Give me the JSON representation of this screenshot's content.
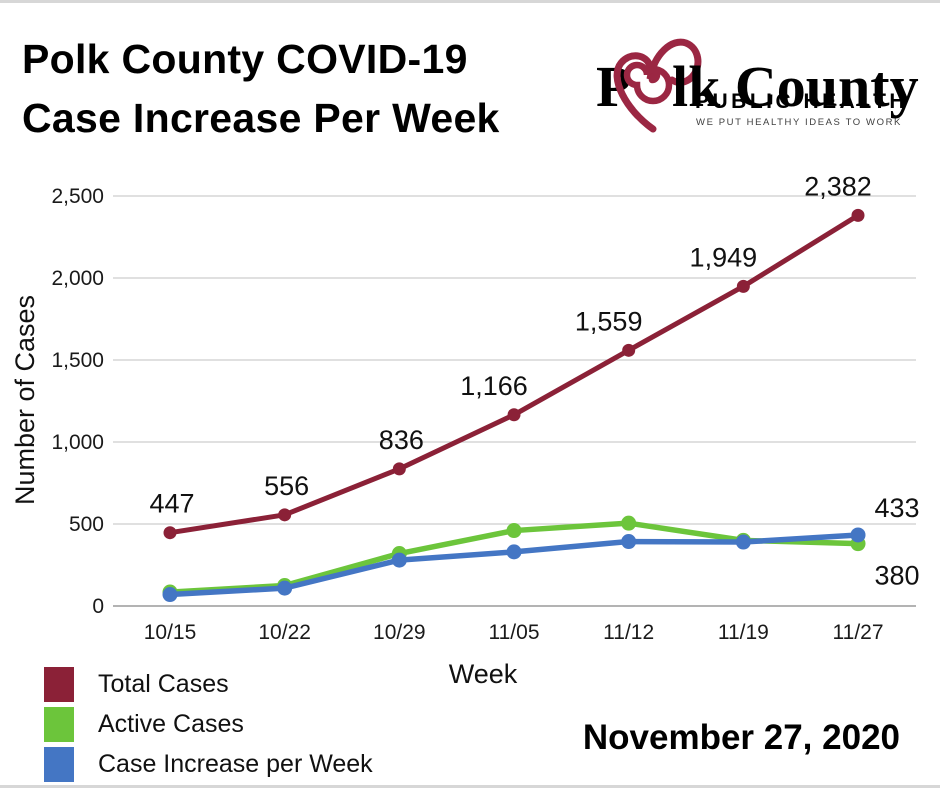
{
  "header": {
    "title_line1": "Polk County COVID-19",
    "title_line2": "Case Increase Per Week"
  },
  "logo": {
    "name_pre": "P",
    "name_post": "lk County",
    "subtitle": "PUBLIC HEALTH",
    "tagline": "WE PUT HEALTHY IDEAS TO WORK",
    "heart_color": "#9b2743"
  },
  "chart_data": {
    "type": "line",
    "title": "Polk County COVID-19 Case Increase Per Week",
    "xlabel": "Week",
    "ylabel": "Number of Cases",
    "categories": [
      "10/15",
      "10/22",
      "10/29",
      "11/05",
      "11/12",
      "11/19",
      "11/27"
    ],
    "y_ticks": [
      {
        "value": 0,
        "label": "0"
      },
      {
        "value": 500,
        "label": "500"
      },
      {
        "value": 1000,
        "label": "1,000"
      },
      {
        "value": 1500,
        "label": "1,500"
      },
      {
        "value": 2000,
        "label": "2,000"
      },
      {
        "value": 2500,
        "label": "2,500"
      }
    ],
    "ylim": [
      0,
      2500
    ],
    "grid": true,
    "legend_position": "bottom-left",
    "series": [
      {
        "name": "Total Cases",
        "color": "#8b2137",
        "values": [
          447,
          556,
          836,
          1166,
          1559,
          1949,
          2382
        ],
        "labels": [
          "447",
          "556",
          "836",
          "1,166",
          "1,559",
          "1,949",
          "2,382"
        ]
      },
      {
        "name": "Active Cases",
        "color": "#6cc53b",
        "values": [
          85,
          125,
          320,
          460,
          505,
          400,
          380
        ]
      },
      {
        "name": "Case Increase per Week",
        "color": "#4476c4",
        "values": [
          70,
          109,
          280,
          330,
          393,
          390,
          433
        ]
      }
    ],
    "end_labels": [
      {
        "text": "433",
        "series": 2,
        "position": "above"
      },
      {
        "text": "380",
        "series": 1,
        "position": "below"
      }
    ]
  },
  "footer": {
    "date": "November 27, 2020"
  }
}
